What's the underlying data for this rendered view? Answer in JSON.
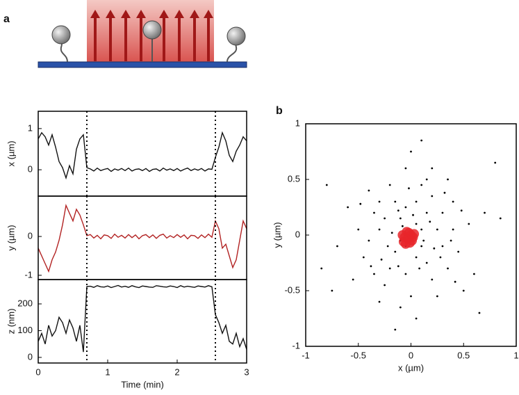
{
  "panel_labels": [
    "a",
    "b"
  ],
  "chart_data": [
    {
      "type": "line",
      "ylabel": "x (µm)",
      "color": "#111111",
      "x": [
        0,
        0.05,
        0.1,
        0.15,
        0.2,
        0.25,
        0.3,
        0.35,
        0.4,
        0.45,
        0.5,
        0.55,
        0.6,
        0.65,
        0.7,
        0.75,
        0.8,
        0.85,
        0.9,
        0.95,
        1,
        1.05,
        1.1,
        1.15,
        1.2,
        1.25,
        1.3,
        1.35,
        1.4,
        1.45,
        1.5,
        1.55,
        1.6,
        1.65,
        1.7,
        1.75,
        1.8,
        1.85,
        1.9,
        1.95,
        2,
        2.05,
        2.1,
        2.15,
        2.2,
        2.25,
        2.3,
        2.35,
        2.4,
        2.45,
        2.5,
        2.55,
        2.6,
        2.65,
        2.7,
        2.75,
        2.8,
        2.85,
        2.9,
        2.95,
        3
      ],
      "values": [
        0.75,
        0.9,
        0.8,
        0.6,
        0.85,
        0.55,
        0.2,
        0.05,
        -0.2,
        0.1,
        -0.1,
        0.5,
        0.75,
        0.85,
        0.05,
        0.02,
        -0.03,
        0.04,
        -0.02,
        0.01,
        0.03,
        -0.04,
        0.02,
        -0.01,
        0.03,
        -0.02,
        0.04,
        -0.03,
        0.01,
        0.02,
        -0.02,
        0.03,
        -0.04,
        0.01,
        0.02,
        -0.03,
        0.04,
        -0.01,
        0.02,
        -0.02,
        0.03,
        -0.03,
        0.01,
        0.04,
        -0.02,
        0.02,
        -0.01,
        0.03,
        -0.03,
        0.02,
        0.01,
        0.3,
        0.55,
        0.9,
        0.7,
        0.35,
        0.2,
        0.45,
        0.6,
        0.8,
        0.7
      ],
      "xlim": [
        0,
        3
      ],
      "ylim": [
        -0.64,
        1.42
      ],
      "yticks": [
        0,
        1
      ],
      "vlines": [
        0.7,
        2.55
      ]
    },
    {
      "type": "line",
      "ylabel": "y (µm)",
      "color": "#b22222",
      "x": [
        0,
        0.05,
        0.1,
        0.15,
        0.2,
        0.25,
        0.3,
        0.35,
        0.4,
        0.45,
        0.5,
        0.55,
        0.6,
        0.65,
        0.7,
        0.75,
        0.8,
        0.85,
        0.9,
        0.95,
        1,
        1.05,
        1.1,
        1.15,
        1.2,
        1.25,
        1.3,
        1.35,
        1.4,
        1.45,
        1.5,
        1.55,
        1.6,
        1.65,
        1.7,
        1.75,
        1.8,
        1.85,
        1.9,
        1.95,
        2,
        2.05,
        2.1,
        2.15,
        2.2,
        2.25,
        2.3,
        2.35,
        2.4,
        2.45,
        2.5,
        2.55,
        2.6,
        2.65,
        2.7,
        2.75,
        2.8,
        2.85,
        2.9,
        2.95,
        3
      ],
      "values": [
        -0.3,
        -0.5,
        -0.7,
        -0.9,
        -0.6,
        -0.4,
        -0.1,
        0.3,
        0.8,
        0.6,
        0.4,
        0.7,
        0.55,
        0.3,
        0.02,
        0.05,
        -0.04,
        0.03,
        -0.06,
        0.04,
        0.02,
        -0.05,
        0.06,
        -0.02,
        0.03,
        -0.04,
        0.05,
        -0.03,
        0.04,
        -0.06,
        0.02,
        0.05,
        -0.03,
        0.04,
        -0.05,
        0.03,
        0.06,
        -0.04,
        0.02,
        -0.03,
        0.05,
        -0.02,
        0.04,
        -0.06,
        0.03,
        0.02,
        -0.05,
        0.04,
        -0.03,
        0.06,
        -0.02,
        0.4,
        0.2,
        -0.3,
        -0.2,
        -0.5,
        -0.8,
        -0.6,
        -0.1,
        0.4,
        0.2
      ],
      "xlim": [
        0,
        3
      ],
      "ylim": [
        -1.11,
        1.04
      ],
      "yticks": [
        -1,
        0
      ],
      "vlines": [
        0.7,
        2.55
      ]
    },
    {
      "type": "line",
      "ylabel": "z (nm)",
      "xlabel": "Time (min)",
      "color": "#111111",
      "x": [
        0,
        0.05,
        0.1,
        0.15,
        0.2,
        0.25,
        0.3,
        0.35,
        0.4,
        0.45,
        0.5,
        0.55,
        0.6,
        0.65,
        0.7,
        0.75,
        0.8,
        0.85,
        0.9,
        0.95,
        1,
        1.05,
        1.1,
        1.15,
        1.2,
        1.25,
        1.3,
        1.35,
        1.4,
        1.45,
        1.5,
        1.55,
        1.6,
        1.65,
        1.7,
        1.75,
        1.8,
        1.85,
        1.9,
        1.95,
        2,
        2.05,
        2.1,
        2.15,
        2.2,
        2.25,
        2.3,
        2.35,
        2.4,
        2.45,
        2.5,
        2.55,
        2.6,
        2.65,
        2.7,
        2.75,
        2.8,
        2.85,
        2.9,
        2.95,
        3
      ],
      "values": [
        60,
        90,
        50,
        120,
        80,
        100,
        150,
        130,
        90,
        140,
        110,
        60,
        120,
        20,
        265,
        266,
        262,
        268,
        264,
        263,
        267,
        261,
        265,
        269,
        263,
        266,
        262,
        268,
        264,
        261,
        267,
        265,
        263,
        262,
        268,
        266,
        264,
        263,
        267,
        265,
        261,
        268,
        263,
        266,
        264,
        262,
        267,
        265,
        263,
        268,
        264,
        160,
        130,
        90,
        120,
        60,
        50,
        90,
        40,
        70,
        30
      ],
      "xlim": [
        0,
        3
      ],
      "ylim": [
        -21,
        291
      ],
      "xticks": [
        0,
        1,
        2,
        3
      ],
      "yticks": [
        0,
        100,
        200
      ],
      "vlines": [
        0.7,
        2.55
      ]
    },
    {
      "type": "scatter",
      "xlabel": "x (µm)",
      "ylabel": "y (µm)",
      "xlim": [
        -1,
        1
      ],
      "ylim": [
        -1,
        1
      ],
      "xticks": [
        -1,
        -0.5,
        0,
        0.5,
        1
      ],
      "yticks": [
        -1,
        -0.5,
        0,
        0.5,
        1
      ],
      "series": [
        {
          "color": "#000000",
          "x": [
            -0.35,
            0.1,
            -0.2,
            0.3,
            0.05,
            -0.1,
            0.4,
            -0.45,
            0.2,
            -0.05,
            0.15,
            -0.3,
            0.25,
            -0.15,
            0.05,
            -0.25,
            0.35,
            0.55,
            -0.6,
            0.0,
            0.1,
            -0.1,
            0.2,
            -0.4,
            0.45,
            -0.2,
            0.3,
            -0.05,
            0.15,
            -0.35,
            0.6,
            -0.55,
            0.05,
            -0.15,
            0.25,
            -0.25,
            0.4,
            -0.5,
            0.1,
            -0.05,
            0.7,
            -0.7,
            0.0,
            0.05,
            0.35,
            -0.4,
            0.5,
            -0.3,
            0.2,
            -0.1,
            0.8,
            -0.8,
            0.65,
            -0.75,
            0.85,
            -0.85,
            0.1,
            -0.15,
            0.12,
            -0.08,
            0.18,
            -0.22,
            0.28,
            -0.12,
            0.08,
            -0.3,
            0.32,
            -0.38,
            0.42,
            -0.02,
            0.22,
            -0.18,
            0.02,
            -0.28,
            0.48,
            -0.48,
            0.15,
            -0.05,
            0.38,
            -0.12
          ],
          "y": [
            0.2,
            0.45,
            -0.3,
            -0.1,
            0.1,
            -0.05,
            0.3,
            -0.2,
            -0.4,
            0.6,
            0.2,
            0.05,
            0.05,
            0.3,
            -0.2,
            -0.45,
            -0.3,
            0.1,
            0.25,
            -0.55,
            -0.1,
            0.15,
            0.35,
            -0.05,
            -0.15,
            0.45,
            0.2,
            -0.35,
            -0.25,
            -0.35,
            -0.35,
            -0.4,
            0.3,
            -0.15,
            -0.55,
            0.15,
            0.05,
            0.05,
            0.05,
            -0.1,
            0.2,
            -0.1,
            0.75,
            -0.75,
            0.5,
            0.4,
            -0.5,
            -0.6,
            0.6,
            -0.65,
            0.65,
            0.45,
            -0.7,
            -0.5,
            0.15,
            -0.3,
            0.85,
            -0.85,
            -0.05,
            0.08,
            0.12,
            -0.1,
            -0.2,
            0.22,
            -0.3,
            0.3,
            0.38,
            -0.28,
            -0.42,
            0.42,
            -0.12,
            0.02,
            0.18,
            -0.22,
            0.22,
            0.28,
            0.5,
            0.25,
            -0.05,
            -0.28
          ]
        },
        {
          "color": "#e8262a",
          "x": [
            -0.03,
            0.0,
            -0.06,
            -0.02,
            0.01,
            -0.07,
            -0.04,
            0.02,
            -0.05,
            -0.01,
            -0.08,
            0.03
          ],
          "y": [
            -0.03,
            0.0,
            -0.02,
            0.02,
            -0.05,
            -0.06,
            0.03,
            -0.02,
            -0.08,
            -0.07,
            0.0,
            0.01
          ]
        }
      ]
    }
  ]
}
